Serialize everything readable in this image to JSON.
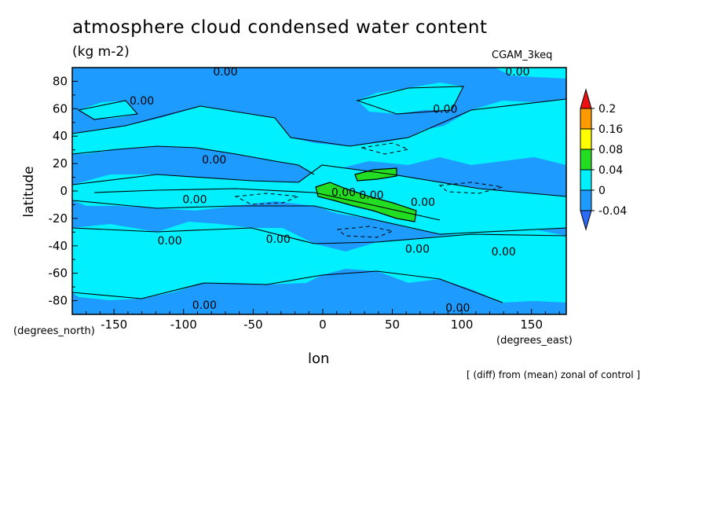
{
  "chart_data": {
    "type": "heatmap",
    "title": "atmosphere cloud condensed water content",
    "units": "(kg m-2)",
    "dataset_label": "CGAM_3keq",
    "xlabel": "lon",
    "ylabel": "latitude",
    "x_unit_label": "(degrees_east)",
    "y_unit_label": "(degrees_north)",
    "note": "[ (diff) from (mean) zonal of control ]",
    "xlim": [
      -180,
      175
    ],
    "ylim": [
      -90,
      90
    ],
    "x_ticks": [
      -150,
      -100,
      -50,
      0,
      50,
      100,
      150
    ],
    "x_tick_labels": [
      "-150",
      "-100",
      "-50",
      "0",
      "50",
      "100",
      "150"
    ],
    "y_ticks": [
      -80,
      -60,
      -40,
      -20,
      0,
      20,
      40,
      60,
      80
    ],
    "y_tick_labels": [
      "-80",
      "-60",
      "-40",
      "-20",
      "0",
      "20",
      "40",
      "60",
      "80"
    ],
    "colorbar": {
      "levels": [
        -0.04,
        0,
        0.04,
        0.08,
        0.16,
        0.2
      ],
      "level_labels": [
        "-0.04",
        "0",
        "0.04",
        "0.08",
        "0.16",
        "0.2"
      ],
      "colors": [
        "#2a6cf5",
        "#1e9bff",
        "#00f0ff",
        "#22dd22",
        "#ffff00",
        "#ff9900",
        "#ee1111"
      ]
    },
    "contour_labels": [
      {
        "text": "0.00",
        "lon": -70,
        "lat": 87
      },
      {
        "text": "0.00",
        "lon": 140,
        "lat": 87
      },
      {
        "text": "0.00",
        "lon": -130,
        "lat": 66
      },
      {
        "text": "0.00",
        "lon": 88,
        "lat": 60
      },
      {
        "text": "0.00",
        "lon": -78,
        "lat": 23
      },
      {
        "text": "0.00",
        "lon": -92,
        "lat": -6
      },
      {
        "text": "0.00",
        "lon": 15,
        "lat": -1
      },
      {
        "text": "0.00",
        "lon": 35,
        "lat": -3
      },
      {
        "text": "0.00",
        "lon": 72,
        "lat": -8
      },
      {
        "text": "0.00",
        "lon": -110,
        "lat": -36
      },
      {
        "text": "0.00",
        "lon": -32,
        "lat": -35
      },
      {
        "text": "0.00",
        "lon": 68,
        "lat": -42
      },
      {
        "text": "0.00",
        "lon": 130,
        "lat": -44
      },
      {
        "text": "0.00",
        "lon": -85,
        "lat": -83
      },
      {
        "text": "0.00",
        "lon": 97,
        "lat": -85
      }
    ],
    "regions": [
      {
        "level": "0 to 0.04",
        "color": "#00f0ff",
        "area": "tropical belt and mid-latitude bands"
      },
      {
        "level": "0.04 to 0.08",
        "color": "#22dd22",
        "area": "equatorial Africa / Indian Ocean near 0-60E"
      },
      {
        "level": "-0.04 to 0",
        "color": "#1e9bff",
        "area": "background"
      }
    ]
  }
}
